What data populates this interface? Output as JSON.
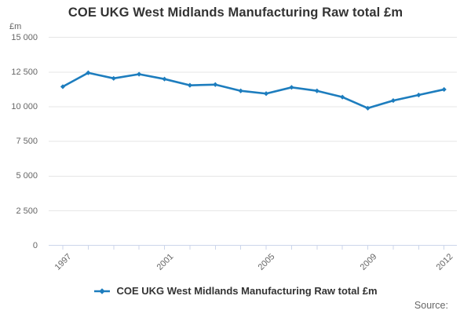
{
  "page": {
    "source_label": "Source:"
  },
  "chart_data": {
    "type": "line",
    "title": "COE UKG West Midlands Manufacturing Raw total £m",
    "ylabel_unit": "£m",
    "x": [
      1997,
      1998,
      1999,
      2000,
      2001,
      2002,
      2003,
      2004,
      2005,
      2006,
      2007,
      2008,
      2009,
      2010,
      2011,
      2012
    ],
    "values": [
      11450,
      12450,
      12050,
      12350,
      12000,
      11550,
      11600,
      11150,
      10950,
      11400,
      11150,
      10700,
      9900,
      10450,
      10850,
      11250
    ],
    "ylim": [
      0,
      15000
    ],
    "ytick_values": [
      0,
      2500,
      5000,
      7500,
      10000,
      12500,
      15000
    ],
    "ytick_labels": [
      "0",
      "2 500",
      "5 000",
      "7 500",
      "10 000",
      "12 500",
      "15 000"
    ],
    "xtick_labeled_years": [
      "1997",
      "2001",
      "2005",
      "2009",
      "2012"
    ],
    "grid": true,
    "legend_position": "bottom-center",
    "legend_label": "COE UKG West Midlands Manufacturing Raw total £m",
    "line_color": "#1d7dbe",
    "gridline_color": "#e6e6e6",
    "axis_tick_color": "#ccd6eb",
    "title_color": "#333333",
    "label_color": "#666666"
  }
}
